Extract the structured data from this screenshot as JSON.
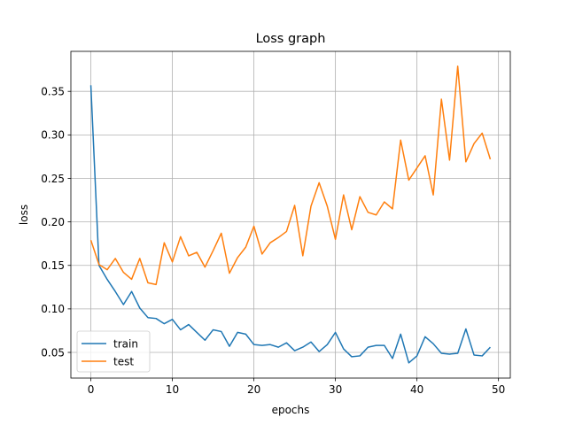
{
  "chart_data": {
    "type": "line",
    "title": "Loss graph",
    "xlabel": "epochs",
    "ylabel": "loss",
    "xlim": [
      -2.45,
      51.45
    ],
    "ylim": [
      0.0205,
      0.396
    ],
    "xticks": [
      0,
      10,
      20,
      30,
      40,
      50
    ],
    "yticks": [
      0.05,
      0.1,
      0.15,
      0.2,
      0.25,
      0.3,
      0.35
    ],
    "grid": true,
    "legend_position": "lower-left",
    "x": [
      0,
      1,
      2,
      3,
      4,
      5,
      6,
      7,
      8,
      9,
      10,
      11,
      12,
      13,
      14,
      15,
      16,
      17,
      18,
      19,
      20,
      21,
      22,
      23,
      24,
      25,
      26,
      27,
      28,
      29,
      30,
      31,
      32,
      33,
      34,
      35,
      36,
      37,
      38,
      39,
      40,
      41,
      42,
      43,
      44,
      45,
      46,
      47,
      48,
      49
    ],
    "series": [
      {
        "name": "train",
        "color": "#1f77b4",
        "values": [
          0.357,
          0.15,
          0.134,
          0.12,
          0.105,
          0.12,
          0.101,
          0.09,
          0.089,
          0.083,
          0.088,
          0.076,
          0.082,
          0.073,
          0.064,
          0.076,
          0.074,
          0.057,
          0.073,
          0.071,
          0.059,
          0.058,
          0.059,
          0.056,
          0.061,
          0.052,
          0.056,
          0.062,
          0.051,
          0.059,
          0.073,
          0.054,
          0.045,
          0.046,
          0.056,
          0.058,
          0.058,
          0.043,
          0.071,
          0.038,
          0.046,
          0.068,
          0.06,
          0.049,
          0.048,
          0.049,
          0.077,
          0.047,
          0.046,
          0.056
        ]
      },
      {
        "name": "test",
        "color": "#ff7f0e",
        "values": [
          0.179,
          0.151,
          0.145,
          0.158,
          0.142,
          0.134,
          0.158,
          0.13,
          0.128,
          0.176,
          0.154,
          0.183,
          0.161,
          0.165,
          0.148,
          0.167,
          0.187,
          0.141,
          0.159,
          0.171,
          0.195,
          0.163,
          0.176,
          0.182,
          0.189,
          0.219,
          0.161,
          0.218,
          0.245,
          0.218,
          0.18,
          0.231,
          0.191,
          0.229,
          0.211,
          0.208,
          0.223,
          0.215,
          0.294,
          0.248,
          0.262,
          0.276,
          0.231,
          0.341,
          0.271,
          0.379,
          0.269,
          0.29,
          0.302,
          0.272
        ]
      }
    ]
  }
}
